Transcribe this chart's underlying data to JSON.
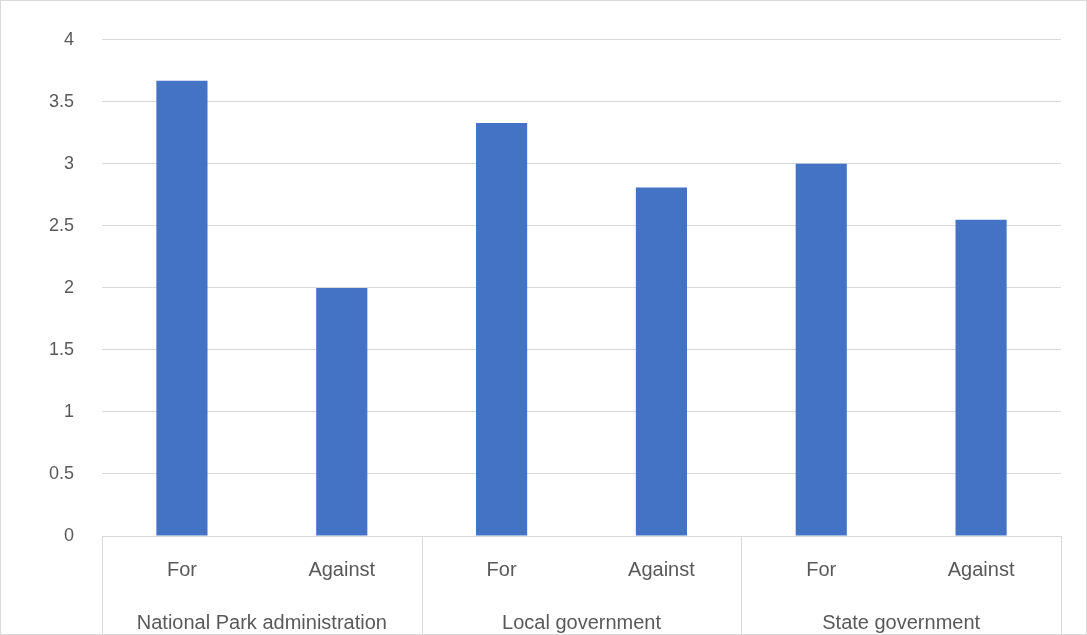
{
  "chart_data": {
    "type": "bar",
    "categories": [
      "For",
      "Against",
      "For",
      "Against",
      "For",
      "Against"
    ],
    "values": [
      3.67,
      2.0,
      3.33,
      2.81,
      3.0,
      2.55
    ],
    "color": "#4472c4",
    "ylim": [
      0,
      4
    ],
    "yticks": [
      0,
      0.5,
      1,
      1.5,
      2,
      2.5,
      3,
      3.5,
      4
    ],
    "grid": "y",
    "legend": false,
    "annotations": [
      "National Park administration",
      "Local government",
      "State government"
    ]
  }
}
